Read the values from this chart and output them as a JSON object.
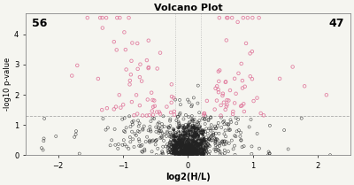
{
  "title": "Volcano Plot",
  "xlabel": "log2(H/L)",
  "ylabel": "-log10 p-value",
  "xlim": [
    -2.5,
    2.5
  ],
  "ylim": [
    0,
    4.7
  ],
  "x_ticks": [
    -2,
    -1,
    0,
    1,
    2
  ],
  "y_ticks": [
    0,
    1,
    2,
    3,
    4
  ],
  "fc_threshold": 0.2,
  "pval_threshold": 1.3,
  "left_count": "56",
  "right_count": "47",
  "background_color": "#f5f5f0",
  "point_color_default": "#222222",
  "point_color_highlight": "#e0759a",
  "point_size": 5,
  "point_linewidth": 0.4,
  "seed": 42,
  "n_points": 1000
}
